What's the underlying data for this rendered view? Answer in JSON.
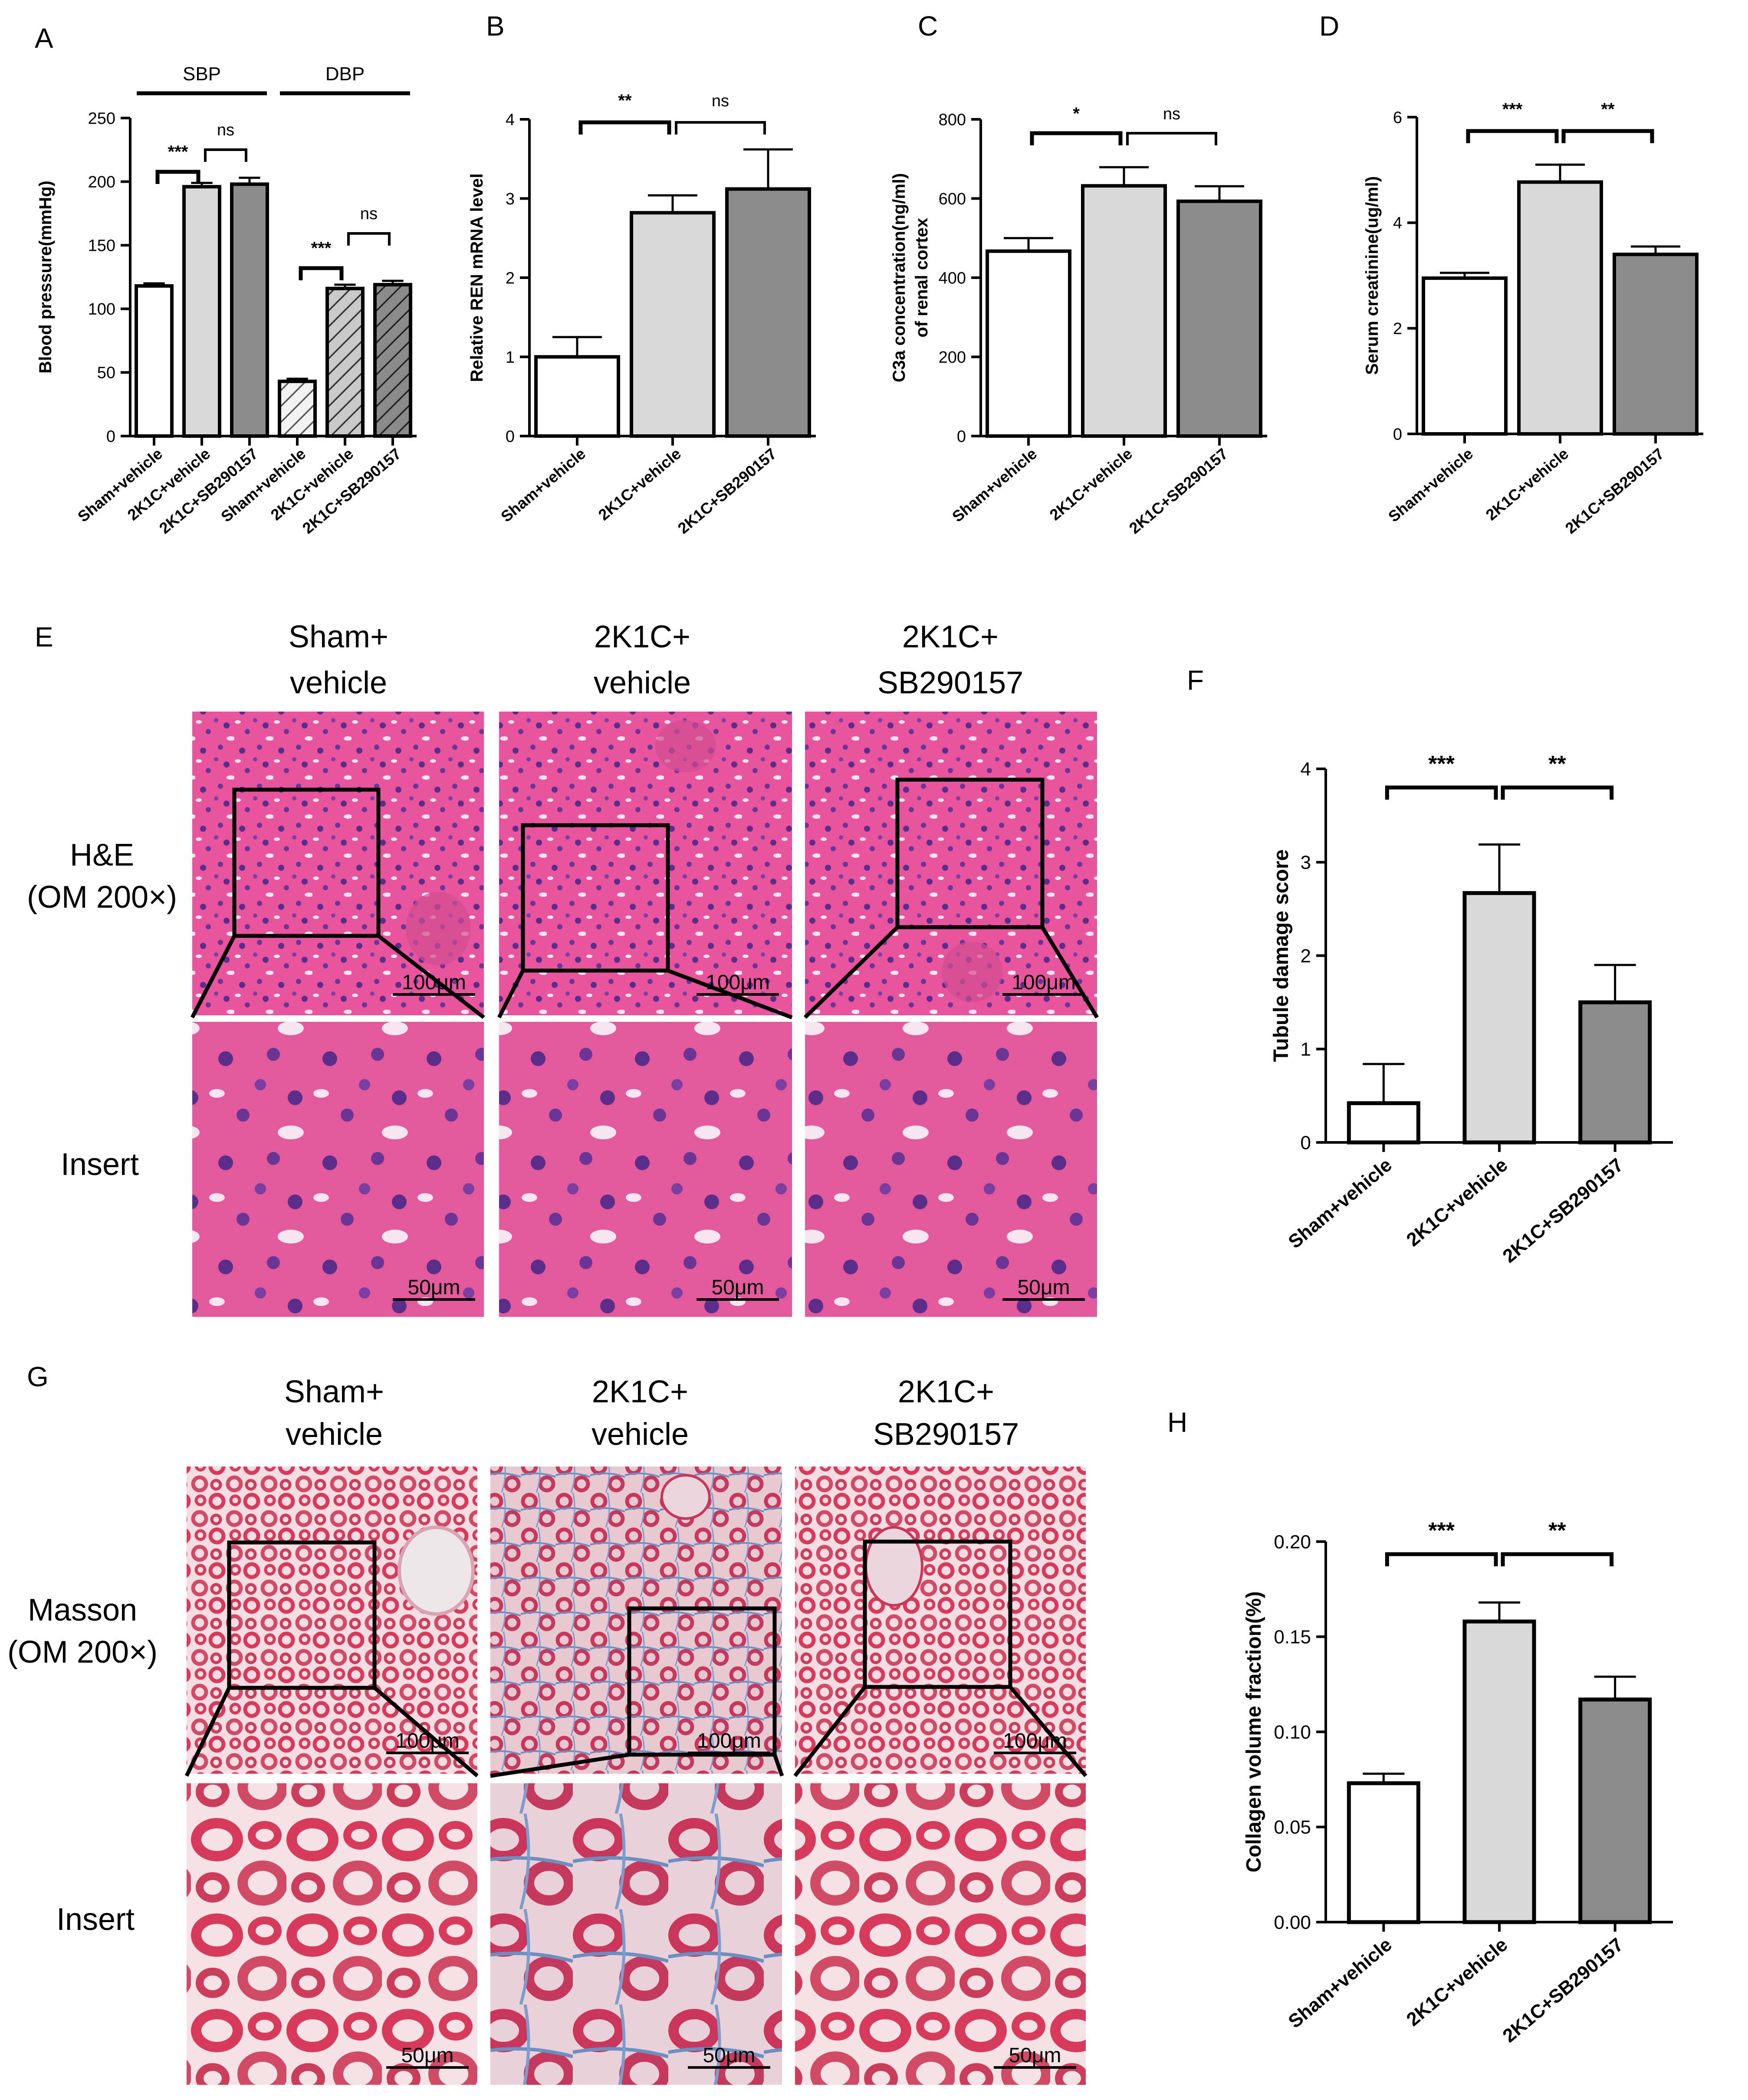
{
  "panel_letters": [
    "A",
    "B",
    "C",
    "D",
    "E",
    "F",
    "G",
    "H"
  ],
  "histology": {
    "he": {
      "column_titles": [
        [
          "Sham+",
          "vehicle"
        ],
        [
          "2K1C+",
          "vehicle"
        ],
        [
          "2K1C+",
          "SB290157"
        ]
      ],
      "row_labels": [
        [
          "H&E",
          "(OM 200×)"
        ],
        [
          "Insert"
        ]
      ],
      "scale_bars": [
        "100μm",
        "50μm"
      ]
    },
    "masson": {
      "column_titles": [
        [
          "Sham+",
          "vehicle"
        ],
        [
          "2K1C+",
          "vehicle"
        ],
        [
          "2K1C+",
          "SB290157"
        ]
      ],
      "row_labels": [
        [
          "Masson",
          "(OM 200×)"
        ],
        [
          "Insert"
        ]
      ],
      "scale_bars": [
        "100μm",
        "50μm"
      ]
    },
    "colors": {
      "he_stain": "#e8559e",
      "he_nuclei": "#5b2d8a",
      "masson_stain": "#d83a5b",
      "masson_collagen": "#6a8fc0"
    }
  },
  "chart_data": [
    {
      "panel": "A",
      "type": "bar",
      "categories": [
        "Sham+vehicle",
        "2K1C+vehicle",
        "2K1C+SB290157",
        "Sham+vehicle",
        "2K1C+vehicle",
        "2K1C+SB290157"
      ],
      "values": [
        118,
        196,
        198,
        43,
        116,
        119
      ],
      "errors": [
        2,
        3,
        5,
        2,
        3,
        3
      ],
      "group_labels": [
        "SBP",
        "DBP"
      ],
      "ylabel": "Blood pressure(mmHg)",
      "ylim": [
        0,
        250
      ],
      "yticks": [
        0,
        50,
        100,
        150,
        200,
        250
      ],
      "fills": [
        "#ffffff",
        "#d9d9d9",
        "#8c8c8c",
        "hatch-light",
        "hatch-mid",
        "hatch-dark"
      ],
      "significance": [
        [
          "***",
          0,
          1
        ],
        [
          "ns",
          1,
          2
        ],
        [
          "***",
          3,
          4
        ],
        [
          "ns",
          4,
          5
        ]
      ]
    },
    {
      "panel": "B",
      "type": "bar",
      "categories": [
        "Sham+vehicle",
        "2K1C+vehicle",
        "2K1C+SB290157"
      ],
      "values": [
        1.0,
        2.82,
        3.12
      ],
      "errors": [
        0.25,
        0.22,
        0.5
      ],
      "ylabel": "Relative REN mRNA level",
      "ylim": [
        0,
        4
      ],
      "yticks": [
        0,
        1,
        2,
        3,
        4
      ],
      "fills": [
        "#ffffff",
        "#d9d9d9",
        "#8c8c8c"
      ],
      "significance": [
        [
          "**",
          0,
          1
        ],
        [
          "ns",
          1,
          2
        ]
      ]
    },
    {
      "panel": "C",
      "type": "bar",
      "categories": [
        "Sham+vehicle",
        "2K1C+vehicle",
        "2K1C+SB290157"
      ],
      "values": [
        467,
        632,
        593
      ],
      "errors": [
        33,
        47,
        38
      ],
      "ylabel": [
        "C3a concentration(ng/ml)",
        "of renal cortex"
      ],
      "ylim": [
        0,
        800
      ],
      "yticks": [
        0,
        200,
        400,
        600,
        800
      ],
      "fills": [
        "#ffffff",
        "#d9d9d9",
        "#8c8c8c"
      ],
      "significance": [
        [
          "*",
          0,
          1
        ],
        [
          "ns",
          1,
          2
        ]
      ]
    },
    {
      "panel": "D",
      "type": "bar",
      "categories": [
        "Sham+vehicle",
        "2K1C+vehicle",
        "2K1C+SB290157"
      ],
      "values": [
        2.95,
        4.77,
        3.4
      ],
      "errors": [
        0.1,
        0.33,
        0.15
      ],
      "ylabel": "Serum creatinine(ug/ml)",
      "ylim": [
        0,
        6
      ],
      "yticks": [
        0,
        2,
        4,
        6
      ],
      "fills": [
        "#ffffff",
        "#d9d9d9",
        "#8c8c8c"
      ],
      "significance": [
        [
          "***",
          0,
          1
        ],
        [
          "**",
          1,
          2
        ]
      ]
    },
    {
      "panel": "F",
      "type": "bar",
      "categories": [
        "Sham+vehicle",
        "2K1C+vehicle",
        "2K1C+SB290157"
      ],
      "values": [
        0.42,
        2.67,
        1.5
      ],
      "errors": [
        0.42,
        0.52,
        0.4
      ],
      "ylabel": "Tubule damage score",
      "ylim": [
        0,
        4
      ],
      "yticks": [
        0,
        1,
        2,
        3,
        4
      ],
      "fills": [
        "#ffffff",
        "#d9d9d9",
        "#8c8c8c"
      ],
      "significance": [
        [
          "***",
          0,
          1
        ],
        [
          "**",
          1,
          2
        ]
      ]
    },
    {
      "panel": "H",
      "type": "bar",
      "categories": [
        "Sham+vehicle",
        "2K1C+vehicle",
        "2K1C+SB290157"
      ],
      "values": [
        0.073,
        0.158,
        0.117
      ],
      "errors": [
        0.005,
        0.01,
        0.012
      ],
      "ylabel": "Collagen volume fraction(%)",
      "ylim": [
        0,
        0.2
      ],
      "yticks": [
        0.0,
        0.05,
        0.1,
        0.15,
        0.2
      ],
      "ytick_labels": [
        "0.00",
        "0.05",
        "0.10",
        "0.15",
        "0.20"
      ],
      "fills": [
        "#ffffff",
        "#d9d9d9",
        "#8c8c8c"
      ],
      "significance": [
        [
          "***",
          0,
          1
        ],
        [
          "**",
          1,
          2
        ]
      ]
    }
  ]
}
